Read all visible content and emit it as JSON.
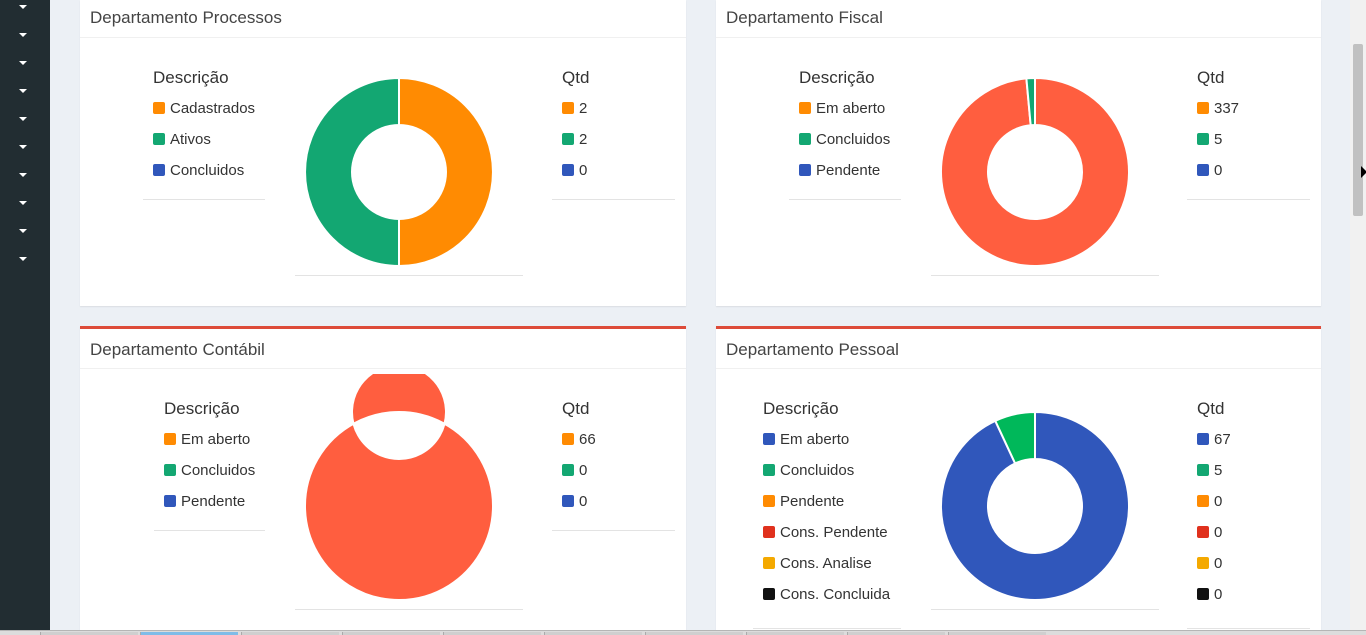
{
  "sidebar": {
    "caret_icon": "caret-down-icon",
    "menu_count": 10
  },
  "panels": [
    {
      "title": "Departamento Processos",
      "desc_header": "Descrição",
      "qtd_header": "Qtd",
      "items": [
        {
          "label": "Cadastrados",
          "qtd": "2",
          "color": "#ff8b02"
        },
        {
          "label": "Ativos",
          "qtd": "2",
          "color": "#13a772"
        },
        {
          "label": "Concluidos",
          "qtd": "0",
          "color": "#3057bb"
        }
      ]
    },
    {
      "title": "Departamento Fiscal",
      "desc_header": "Descrição",
      "qtd_header": "Qtd",
      "items": [
        {
          "label": "Em aberto",
          "qtd": "337",
          "color": "#ff8b02"
        },
        {
          "label": "Concluidos",
          "qtd": "5",
          "color": "#13a772"
        },
        {
          "label": "Pendente",
          "qtd": "0",
          "color": "#3057bb"
        }
      ]
    },
    {
      "title": "Departamento Contábil",
      "desc_header": "Descrição",
      "qtd_header": "Qtd",
      "items": [
        {
          "label": "Em aberto",
          "qtd": "66",
          "color": "#ff8b02"
        },
        {
          "label": "Concluidos",
          "qtd": "0",
          "color": "#13a772"
        },
        {
          "label": "Pendente",
          "qtd": "0",
          "color": "#3057bb"
        }
      ]
    },
    {
      "title": "Departamento Pessoal",
      "desc_header": "Descrição",
      "qtd_header": "Qtd",
      "items": [
        {
          "label": "Em aberto",
          "qtd": "67",
          "color": "#3057bb"
        },
        {
          "label": "Concluidos",
          "qtd": "5",
          "color": "#13a772"
        },
        {
          "label": "Pendente",
          "qtd": "0",
          "color": "#ff8b02"
        },
        {
          "label": "Cons. Pendente",
          "qtd": "0",
          "color": "#e0311d"
        },
        {
          "label": "Cons. Analise",
          "qtd": "0",
          "color": "#f4a900"
        },
        {
          "label": "Cons. Concluida",
          "qtd": "0",
          "color": "#111111"
        }
      ]
    }
  ],
  "chart_data": [
    {
      "type": "pie",
      "variant": "doughnut",
      "labels": [
        "Cadastrados",
        "Ativos",
        "Concluidos"
      ],
      "values": [
        2,
        2,
        0
      ],
      "colors": [
        "#ff8b02",
        "#13a772",
        "#3057bb"
      ]
    },
    {
      "type": "pie",
      "variant": "doughnut",
      "labels": [
        "Em aberto",
        "Concluidos",
        "Pendente"
      ],
      "values": [
        337,
        5,
        0
      ],
      "colors": [
        "#ff5e3f",
        "#13a772",
        "#3057bb"
      ]
    },
    {
      "type": "pie",
      "variant": "doughnut",
      "labels": [
        "Em aberto",
        "Concluidos",
        "Pendente"
      ],
      "values": [
        66,
        0,
        0
      ],
      "colors": [
        "#ff5e3f",
        "#13a772",
        "#3057bb"
      ]
    },
    {
      "type": "pie",
      "variant": "doughnut",
      "labels": [
        "Em aberto",
        "Concluidos",
        "Pendente",
        "Cons. Pendente",
        "Cons. Analise",
        "Cons. Concluida"
      ],
      "values": [
        67,
        5,
        0,
        0,
        0,
        0
      ],
      "colors": [
        "#3057bb",
        "#00b85a",
        "#ff8b02",
        "#e0311d",
        "#f4a900",
        "#111111"
      ]
    }
  ]
}
